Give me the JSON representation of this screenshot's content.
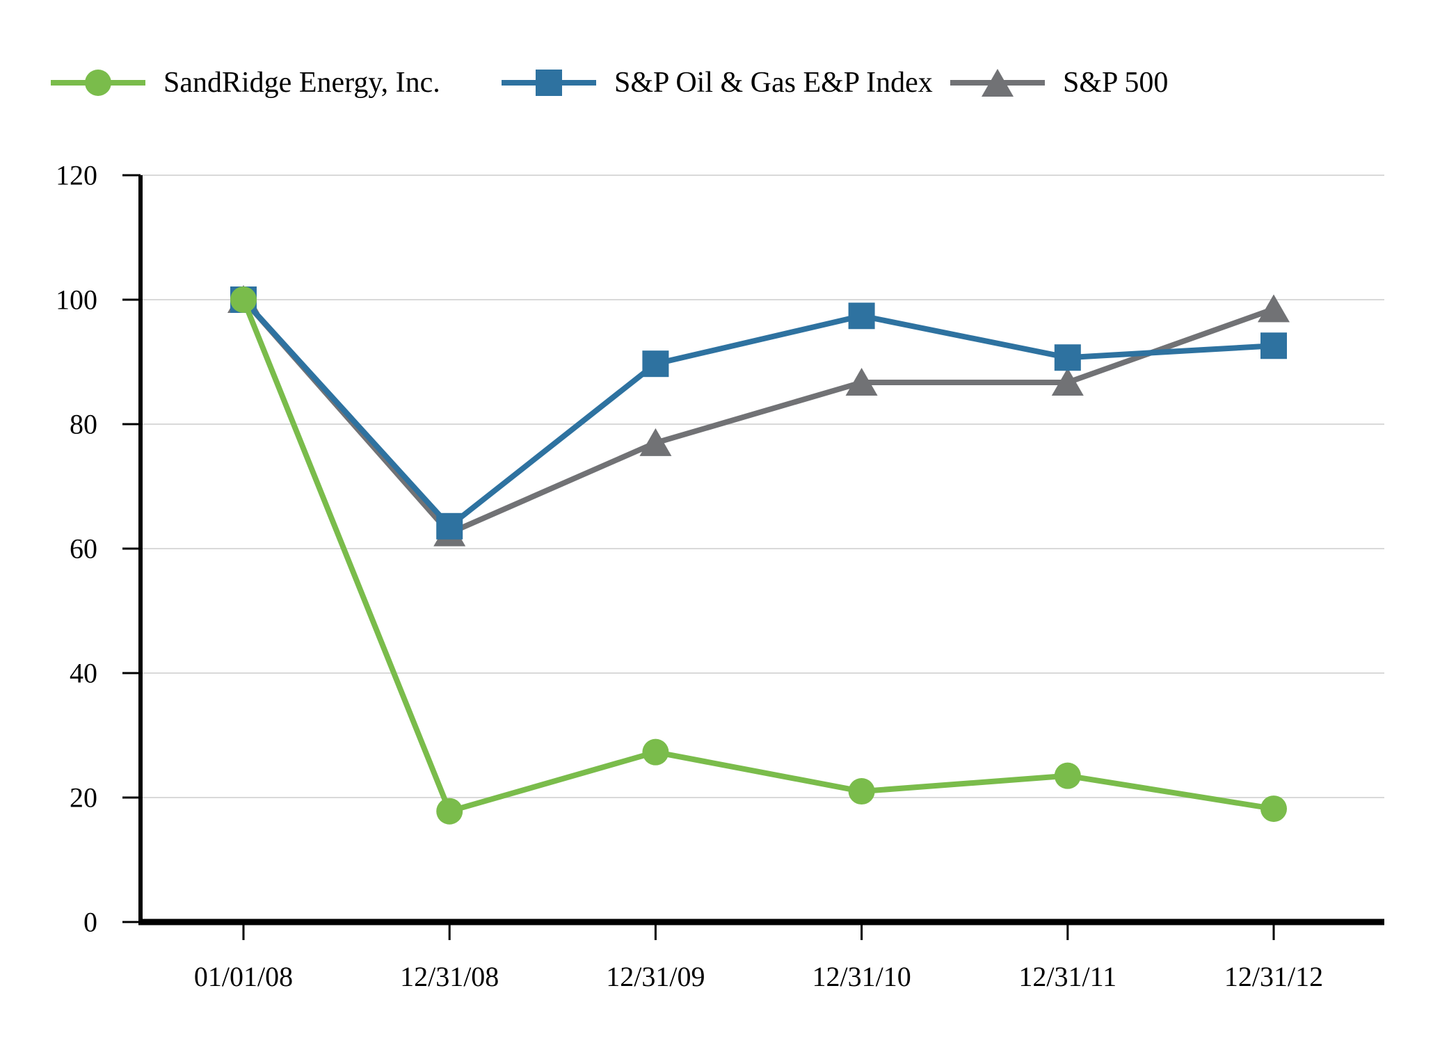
{
  "chart_data": {
    "type": "line",
    "title": "",
    "categories": [
      "01/01/08",
      "12/31/08",
      "12/31/09",
      "12/31/10",
      "12/31/11",
      "12/31/12"
    ],
    "series": [
      {
        "name": "SandRidge Energy, Inc.",
        "marker": "circle",
        "color": "#7ABC4B",
        "values": [
          100,
          17.8,
          27.3,
          21.0,
          23.5,
          18.2
        ]
      },
      {
        "name": "S&P Oil & Gas E&P Index",
        "marker": "square",
        "color": "#2E72A0",
        "values": [
          100,
          63.6,
          89.7,
          97.4,
          90.7,
          92.6
        ]
      },
      {
        "name": "S&P 500",
        "marker": "triangle",
        "color": "#717275",
        "values": [
          100,
          62.5,
          77.0,
          86.7,
          86.7,
          98.5
        ]
      }
    ],
    "xlabel": "",
    "ylabel": "",
    "ylim": [
      0,
      120
    ],
    "y_ticks": [
      0,
      20,
      40,
      60,
      80,
      100,
      120
    ],
    "grid": "horizontal",
    "legend_position": "top",
    "colors": {
      "axis": "#000000",
      "gridline": "#D9D9D9",
      "background": "#FFFFFF",
      "text": "#000000"
    }
  }
}
